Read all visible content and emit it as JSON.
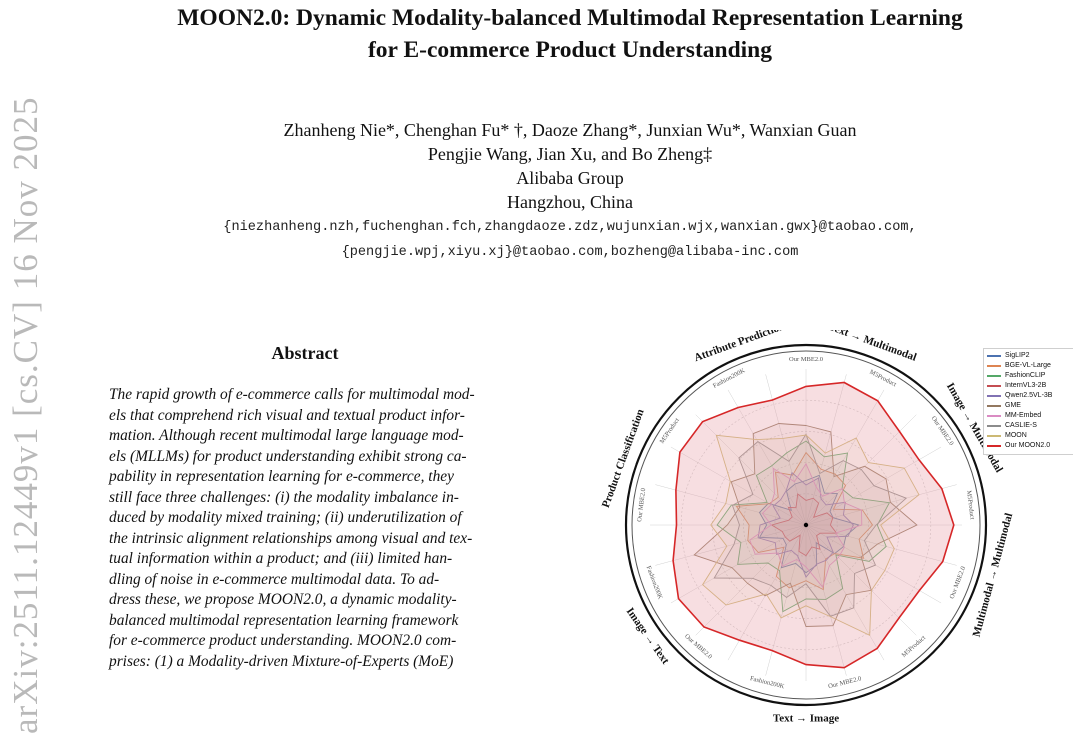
{
  "arxiv_stamp": "arXiv:2511.12449v1  [cs.CV]  16 Nov 2025",
  "paper": {
    "title_line1": "MOON2.0: Dynamic Modality-balanced Multimodal Representation Learning",
    "title_line2": "for E-commerce Product Understanding",
    "authors_line1": "Zhanheng Nie*, Chenghan Fu* †, Daoze Zhang*, Junxian Wu*, Wanxian Guan",
    "authors_line2": "Pengjie Wang, Jian Xu, and Bo Zheng‡",
    "affiliation": "Alibaba Group",
    "location": "Hangzhou, China",
    "emails_line1": "{niezhanheng.nzh,fuchenghan.fch,zhangdaoze.zdz,wujunxian.wjx,wanxian.gwx}@taobao.com,",
    "emails_line2": "{pengjie.wpj,xiyu.xj}@taobao.com,bozheng@alibaba-inc.com"
  },
  "abstract": {
    "heading": "Abstract",
    "lines": [
      "The rapid growth of e-commerce calls for multimodal mod-",
      "els that comprehend rich visual and textual product infor-",
      "mation. Although recent multimodal large language mod-",
      "els (MLLMs) for product understanding exhibit strong ca-",
      "pability in representation learning for e-commerce, they",
      "still face three challenges: (i) the modality imbalance in-",
      "duced by modality mixed training; (ii) underutilization of",
      "the intrinsic alignment relationships among visual and tex-",
      "tual information within a product; and (iii) limited han-",
      "dling of noise in e-commerce multimodal data. To ad-",
      "dress these, we propose MOON2.0, a dynamic modality-",
      "balanced multimodal representation learning framework",
      "for e-commerce product understanding. MOON2.0 com-",
      "prises: (1) a Modality-driven Mixture-of-Experts (MoE)"
    ]
  },
  "figure": {
    "task_labels": [
      "Text → Multimodal",
      "Image → Multimodal",
      "Multimodal → Multimodal",
      "Text → Image",
      "Image → Text",
      "Product Classification",
      "Attribute Prediction"
    ],
    "axis_labels": [
      "Our MBE2.0",
      "M5Product",
      "Our MBE2.0",
      "M5Product",
      "Our MBE2.0",
      "M5Product",
      "Our MBE2.0",
      "Fashion200K",
      "Our MBE2.0",
      "Fashion200K",
      "Our MBE2.0",
      "M5Product",
      "Fashion200K"
    ],
    "legend": [
      {
        "name": "SigLIP2",
        "color": "#4c72b0"
      },
      {
        "name": "BGE-VL-Large",
        "color": "#dd8452"
      },
      {
        "name": "FashionCLIP",
        "color": "#55a868"
      },
      {
        "name": "InternVL3-2B",
        "color": "#c44e52"
      },
      {
        "name": "Qwen2.5VL-3B",
        "color": "#8172b3"
      },
      {
        "name": "GME",
        "color": "#937860"
      },
      {
        "name": "MM-Embed",
        "color": "#da8bc3"
      },
      {
        "name": "CASLIE-S",
        "color": "#8c8c8c"
      },
      {
        "name": "MOON",
        "color": "#ccb974"
      },
      {
        "name": "Our MOON2.0",
        "color": "#d62728"
      }
    ]
  }
}
